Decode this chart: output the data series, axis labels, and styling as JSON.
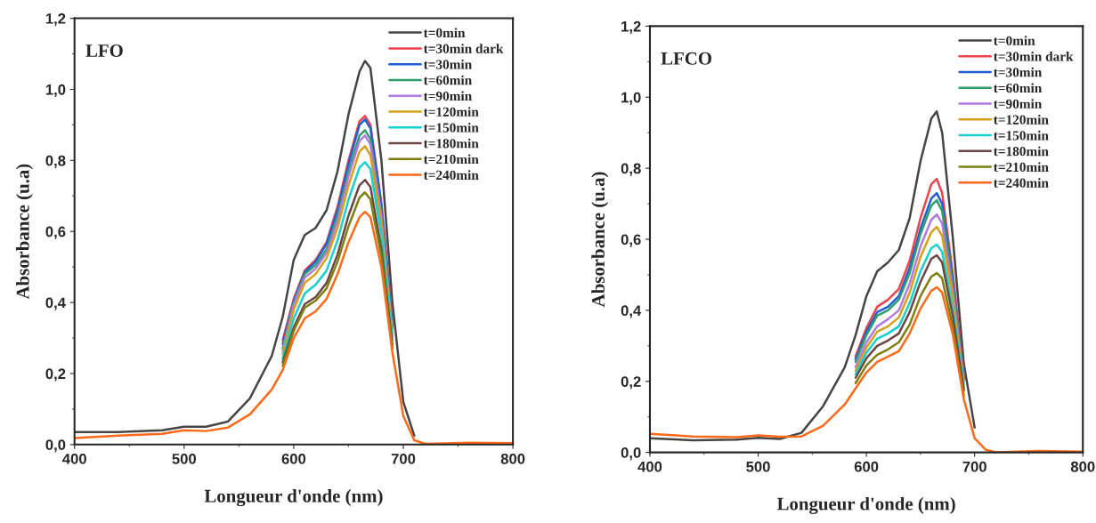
{
  "chart_data": [
    {
      "type": "line",
      "annotations": [
        "LFO"
      ],
      "xlabel": "Longueur d'onde (nm)",
      "ylabel": "Absorbance (u.a)",
      "xlim": [
        400,
        800
      ],
      "xticks": [
        400,
        500,
        600,
        700,
        800
      ],
      "ylim": [
        0,
        1.2
      ],
      "yticks": [
        {
          "value": 0,
          "label": "0,0"
        },
        {
          "value": 0.2,
          "label": "0,2"
        },
        {
          "value": 0.4,
          "label": "0,4"
        },
        {
          "value": 0.6,
          "label": "0,6"
        },
        {
          "value": 0.8,
          "label": "0,8"
        },
        {
          "value": 1.0,
          "label": "1,0"
        },
        {
          "value": 1.2,
          "label": "1,2"
        }
      ],
      "legend": "top right",
      "grid": false,
      "line_style": "solid",
      "x": [
        400,
        440,
        480,
        500,
        520,
        540,
        560,
        580,
        590,
        600,
        610,
        620,
        630,
        640,
        650,
        660,
        665,
        670,
        680,
        690,
        700,
        710,
        720,
        760,
        800
      ],
      "series": [
        {
          "name": "t=0min",
          "color": "#454545",
          "values": [
            0.035,
            0.035,
            0.04,
            0.05,
            0.05,
            0.065,
            0.13,
            0.25,
            0.36,
            0.52,
            0.59,
            0.61,
            0.66,
            0.77,
            0.93,
            1.05,
            1.08,
            1.06,
            0.8,
            0.4,
            0.12,
            0.025,
            null,
            null,
            null
          ]
        },
        {
          "name": "t=30min dark",
          "color": "#f0424a",
          "values": [
            null,
            null,
            null,
            null,
            null,
            null,
            null,
            null,
            0.295,
            0.41,
            0.49,
            0.52,
            0.57,
            0.67,
            0.8,
            0.91,
            0.925,
            0.9,
            0.68,
            0.35,
            null,
            null,
            null,
            null,
            null
          ]
        },
        {
          "name": "t=30min",
          "color": "#1f5fd6",
          "values": [
            null,
            null,
            null,
            null,
            null,
            null,
            null,
            null,
            0.283,
            0.405,
            0.485,
            0.515,
            0.565,
            0.66,
            0.79,
            0.9,
            0.915,
            0.89,
            0.67,
            0.335,
            null,
            null,
            null,
            null,
            null
          ]
        },
        {
          "name": "t=60min",
          "color": "#2e9e6a",
          "values": [
            null,
            null,
            null,
            null,
            null,
            null,
            null,
            null,
            0.272,
            0.4,
            0.48,
            0.505,
            0.55,
            0.645,
            0.77,
            0.87,
            0.885,
            0.86,
            0.65,
            0.325,
            null,
            null,
            null,
            null,
            null
          ]
        },
        {
          "name": "t=90min",
          "color": "#b07ae0",
          "values": [
            null,
            null,
            null,
            null,
            null,
            null,
            null,
            null,
            0.265,
            0.395,
            0.47,
            0.495,
            0.54,
            0.63,
            0.755,
            0.855,
            0.87,
            0.845,
            0.64,
            0.315,
            null,
            null,
            null,
            null,
            null
          ]
        },
        {
          "name": "t=120min",
          "color": "#d4a017",
          "values": [
            null,
            null,
            null,
            null,
            null,
            null,
            null,
            null,
            0.255,
            0.38,
            0.455,
            0.48,
            0.525,
            0.61,
            0.73,
            0.825,
            0.84,
            0.815,
            0.62,
            0.305,
            null,
            null,
            null,
            null,
            null
          ]
        },
        {
          "name": "t=150min",
          "color": "#17cfcf",
          "values": [
            null,
            null,
            null,
            null,
            null,
            null,
            null,
            null,
            0.243,
            0.355,
            0.425,
            0.45,
            0.49,
            0.575,
            0.69,
            0.78,
            0.795,
            0.775,
            0.59,
            0.295,
            null,
            null,
            null,
            null,
            null
          ]
        },
        {
          "name": "t=180min",
          "color": "#6b4444",
          "values": [
            null,
            null,
            null,
            null,
            null,
            null,
            null,
            null,
            0.232,
            0.33,
            0.395,
            0.415,
            0.455,
            0.535,
            0.645,
            0.73,
            0.745,
            0.725,
            0.55,
            0.28,
            null,
            null,
            null,
            null,
            null
          ]
        },
        {
          "name": "t=210min",
          "color": "#7f7f10",
          "values": [
            null,
            null,
            null,
            null,
            null,
            null,
            null,
            null,
            0.222,
            0.32,
            0.385,
            0.405,
            0.44,
            0.515,
            0.615,
            0.695,
            0.71,
            0.69,
            0.53,
            0.27,
            null,
            null,
            null,
            null,
            null
          ]
        },
        {
          "name": "t=240min",
          "color": "#ff6a1a",
          "values": [
            0.018,
            0.025,
            0.03,
            0.04,
            0.038,
            0.048,
            0.085,
            0.155,
            0.21,
            0.3,
            0.355,
            0.375,
            0.41,
            0.48,
            0.57,
            0.64,
            0.655,
            0.64,
            0.5,
            0.26,
            0.08,
            0.012,
            0.002,
            0.005,
            0.004
          ]
        }
      ]
    },
    {
      "type": "line",
      "annotations": [
        "LFCO"
      ],
      "xlabel": "Longueur d'onde (nm)",
      "ylabel": "Absorbance (u.a)",
      "xlim": [
        400,
        800
      ],
      "xticks": [
        400,
        500,
        600,
        700,
        800
      ],
      "ylim": [
        0,
        1.2
      ],
      "yticks": [
        {
          "value": 0,
          "label": "0,0"
        },
        {
          "value": 0.2,
          "label": "0,2"
        },
        {
          "value": 0.4,
          "label": "0,4"
        },
        {
          "value": 0.6,
          "label": "0,6"
        },
        {
          "value": 0.8,
          "label": "0,8"
        },
        {
          "value": 1.0,
          "label": "1,0"
        },
        {
          "value": 1.2,
          "label": "1,2"
        }
      ],
      "legend": "top right",
      "grid": false,
      "line_style": "solid",
      "x": [
        400,
        440,
        480,
        500,
        520,
        540,
        560,
        580,
        590,
        600,
        610,
        620,
        630,
        640,
        650,
        660,
        665,
        670,
        680,
        690,
        700,
        710,
        720,
        760,
        800
      ],
      "series": [
        {
          "name": "t=0min",
          "color": "#454545",
          "values": [
            0.04,
            0.034,
            0.036,
            0.041,
            0.038,
            0.055,
            0.13,
            0.24,
            0.33,
            0.44,
            0.51,
            0.535,
            0.57,
            0.66,
            0.82,
            0.94,
            0.96,
            0.9,
            0.6,
            0.25,
            0.07,
            null,
            null,
            null,
            null
          ]
        },
        {
          "name": "t=30min dark",
          "color": "#f0424a",
          "values": [
            null,
            null,
            null,
            null,
            null,
            null,
            null,
            null,
            0.27,
            0.35,
            0.41,
            0.43,
            0.46,
            0.54,
            0.66,
            0.755,
            0.77,
            0.73,
            0.5,
            0.22,
            null,
            null,
            null,
            null,
            null
          ]
        },
        {
          "name": "t=30min",
          "color": "#1f5fd6",
          "values": [
            null,
            null,
            null,
            null,
            null,
            null,
            null,
            null,
            0.262,
            0.34,
            0.395,
            0.41,
            0.44,
            0.52,
            0.63,
            0.715,
            0.73,
            0.7,
            0.48,
            0.21,
            null,
            null,
            null,
            null,
            null
          ]
        },
        {
          "name": "t=60min",
          "color": "#2e9e6a",
          "values": [
            null,
            null,
            null,
            null,
            null,
            null,
            null,
            null,
            0.255,
            0.33,
            0.385,
            0.4,
            0.43,
            0.505,
            0.615,
            0.695,
            0.71,
            0.68,
            0.47,
            0.205,
            null,
            null,
            null,
            null,
            null
          ]
        },
        {
          "name": "t=90min",
          "color": "#b07ae0",
          "values": [
            null,
            null,
            null,
            null,
            null,
            null,
            null,
            null,
            0.24,
            0.31,
            0.355,
            0.375,
            0.4,
            0.475,
            0.58,
            0.655,
            0.67,
            0.645,
            0.45,
            0.2,
            null,
            null,
            null,
            null,
            null
          ]
        },
        {
          "name": "t=120min",
          "color": "#d4a017",
          "values": [
            null,
            null,
            null,
            null,
            null,
            null,
            null,
            null,
            0.23,
            0.295,
            0.34,
            0.355,
            0.38,
            0.45,
            0.55,
            0.62,
            0.635,
            0.61,
            0.43,
            0.19,
            null,
            null,
            null,
            null,
            null
          ]
        },
        {
          "name": "t=150min",
          "color": "#17cfcf",
          "values": [
            null,
            null,
            null,
            null,
            null,
            null,
            null,
            null,
            0.22,
            0.28,
            0.32,
            0.335,
            0.355,
            0.42,
            0.51,
            0.575,
            0.585,
            0.565,
            0.4,
            0.18,
            null,
            null,
            null,
            null,
            null
          ]
        },
        {
          "name": "t=180min",
          "color": "#6b4444",
          "values": [
            null,
            null,
            null,
            null,
            null,
            null,
            null,
            null,
            0.21,
            0.265,
            0.3,
            0.315,
            0.335,
            0.395,
            0.48,
            0.545,
            0.555,
            0.535,
            0.38,
            0.175,
            null,
            null,
            null,
            null,
            null
          ]
        },
        {
          "name": "t=210min",
          "color": "#7f7f10",
          "values": [
            null,
            null,
            null,
            null,
            null,
            null,
            null,
            null,
            0.195,
            0.245,
            0.275,
            0.29,
            0.31,
            0.36,
            0.44,
            0.495,
            0.505,
            0.49,
            0.35,
            0.16,
            null,
            null,
            null,
            null,
            null
          ]
        },
        {
          "name": "t=240min",
          "color": "#ff6a1a",
          "values": [
            0.052,
            0.045,
            0.043,
            0.048,
            0.044,
            0.045,
            0.075,
            0.135,
            0.18,
            0.225,
            0.255,
            0.27,
            0.285,
            0.335,
            0.405,
            0.455,
            0.465,
            0.45,
            0.33,
            0.15,
            0.04,
            0.008,
            0.0,
            0.004,
            0.002
          ]
        }
      ]
    }
  ]
}
